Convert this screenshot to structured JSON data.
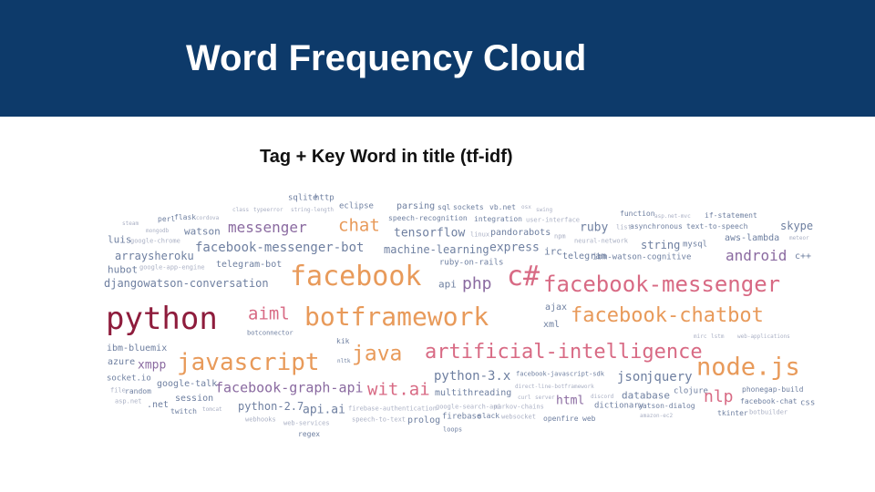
{
  "slide": {
    "title": "Word Frequency Cloud",
    "subtitle": "Tag  +  Key Word in title (tf-idf)"
  },
  "colors": {
    "header_bg": "#0d3a6a",
    "title": "#ffffff",
    "orange": "#e89a5a",
    "dark_red": "#8e1c3c",
    "purple": "#8a6aa0",
    "slate": "#6e7fa0",
    "pink": "#d86a84",
    "gray": "#8a8fa8",
    "light": "#aab0c4"
  },
  "cloud": {
    "words": [
      {
        "text": "sqlite"
      },
      {
        "text": "http"
      },
      {
        "text": "class"
      },
      {
        "text": "typeerror"
      },
      {
        "text": "string-length"
      },
      {
        "text": "eclipse"
      },
      {
        "text": "parsing"
      },
      {
        "text": "sql"
      },
      {
        "text": "sockets"
      },
      {
        "text": "vb.net"
      },
      {
        "text": "osx"
      },
      {
        "text": "swing"
      },
      {
        "text": "function"
      },
      {
        "text": "asp.net-mvc"
      },
      {
        "text": "if-statement"
      },
      {
        "text": "steam"
      },
      {
        "text": "perl"
      },
      {
        "text": "flask"
      },
      {
        "text": "cordova"
      },
      {
        "text": "speech-recognition"
      },
      {
        "text": "integration"
      },
      {
        "text": "user-interface"
      },
      {
        "text": "list"
      },
      {
        "text": "asynchronous"
      },
      {
        "text": "text-to-speech"
      },
      {
        "text": "mongodb"
      },
      {
        "text": "watson"
      },
      {
        "text": "messenger"
      },
      {
        "text": "chat"
      },
      {
        "text": "tensorflow"
      },
      {
        "text": "linux"
      },
      {
        "text": "pandorabots"
      },
      {
        "text": "ruby"
      },
      {
        "text": "skype"
      },
      {
        "text": "luis"
      },
      {
        "text": "google-chrome"
      },
      {
        "text": "npm"
      },
      {
        "text": "neural-network"
      },
      {
        "text": "string"
      },
      {
        "text": "mysql"
      },
      {
        "text": "aws-lambda"
      },
      {
        "text": "meteor"
      },
      {
        "text": "facebook-messenger-bot"
      },
      {
        "text": "machine-learning"
      },
      {
        "text": "express"
      },
      {
        "text": "irc"
      },
      {
        "text": "arraysheroku"
      },
      {
        "text": "telegram"
      },
      {
        "text": "ibm-watson-cognitive"
      },
      {
        "text": "android"
      },
      {
        "text": "c++"
      },
      {
        "text": "hubot"
      },
      {
        "text": "google-app-engine"
      },
      {
        "text": "telegram-bot"
      },
      {
        "text": "ruby-on-rails"
      },
      {
        "text": "facebook"
      },
      {
        "text": "c#"
      },
      {
        "text": "djangowatson-conversation"
      },
      {
        "text": "api"
      },
      {
        "text": "php"
      },
      {
        "text": "facebook-messenger"
      },
      {
        "text": "ajax"
      },
      {
        "text": "python"
      },
      {
        "text": "aiml"
      },
      {
        "text": "botframework"
      },
      {
        "text": "facebook-chatbot"
      },
      {
        "text": "xml"
      },
      {
        "text": "botconnector"
      },
      {
        "text": "mirc"
      },
      {
        "text": "lstm"
      },
      {
        "text": "web-applications"
      },
      {
        "text": "kik"
      },
      {
        "text": "ibm-bluemix"
      },
      {
        "text": "artificial-intelligence"
      },
      {
        "text": "javascript"
      },
      {
        "text": "java"
      },
      {
        "text": "azure"
      },
      {
        "text": "xmpp"
      },
      {
        "text": "nltk"
      },
      {
        "text": "node.js"
      },
      {
        "text": "python-3.x"
      },
      {
        "text": "facebook-javascript-sdk"
      },
      {
        "text": "socket.io"
      },
      {
        "text": "json"
      },
      {
        "text": "jquery"
      },
      {
        "text": "direct-line-botframework"
      },
      {
        "text": "google-talk"
      },
      {
        "text": "file"
      },
      {
        "text": "random"
      },
      {
        "text": "facebook-graph-api"
      },
      {
        "text": "wit.ai"
      },
      {
        "text": "multithreading"
      },
      {
        "text": "curl"
      },
      {
        "text": "server"
      },
      {
        "text": "database"
      },
      {
        "text": "clojure"
      },
      {
        "text": "phonegap-build"
      },
      {
        "text": "html"
      },
      {
        "text": "discord"
      },
      {
        "text": "nlp"
      },
      {
        "text": "session"
      },
      {
        "text": "asp.net"
      },
      {
        "text": ".net"
      },
      {
        "text": "facebook-chat"
      },
      {
        "text": "css"
      },
      {
        "text": "python-2.7"
      },
      {
        "text": "api.ai"
      },
      {
        "text": "dictionary"
      },
      {
        "text": "watson-dialog"
      },
      {
        "text": "twitch"
      },
      {
        "text": "tomcat"
      },
      {
        "text": "firebase-authentication"
      },
      {
        "text": "google-search-api"
      },
      {
        "text": "markov-chains"
      },
      {
        "text": "amazon-ec2"
      },
      {
        "text": "tkinter"
      },
      {
        "text": "botbuilder"
      },
      {
        "text": "webhooks"
      },
      {
        "text": "speech-to-text"
      },
      {
        "text": "prolog"
      },
      {
        "text": "firebase"
      },
      {
        "text": "slack"
      },
      {
        "text": "websocket"
      },
      {
        "text": "openfire"
      },
      {
        "text": "web"
      },
      {
        "text": "web-services"
      },
      {
        "text": "regex"
      },
      {
        "text": "loops"
      }
    ]
  }
}
